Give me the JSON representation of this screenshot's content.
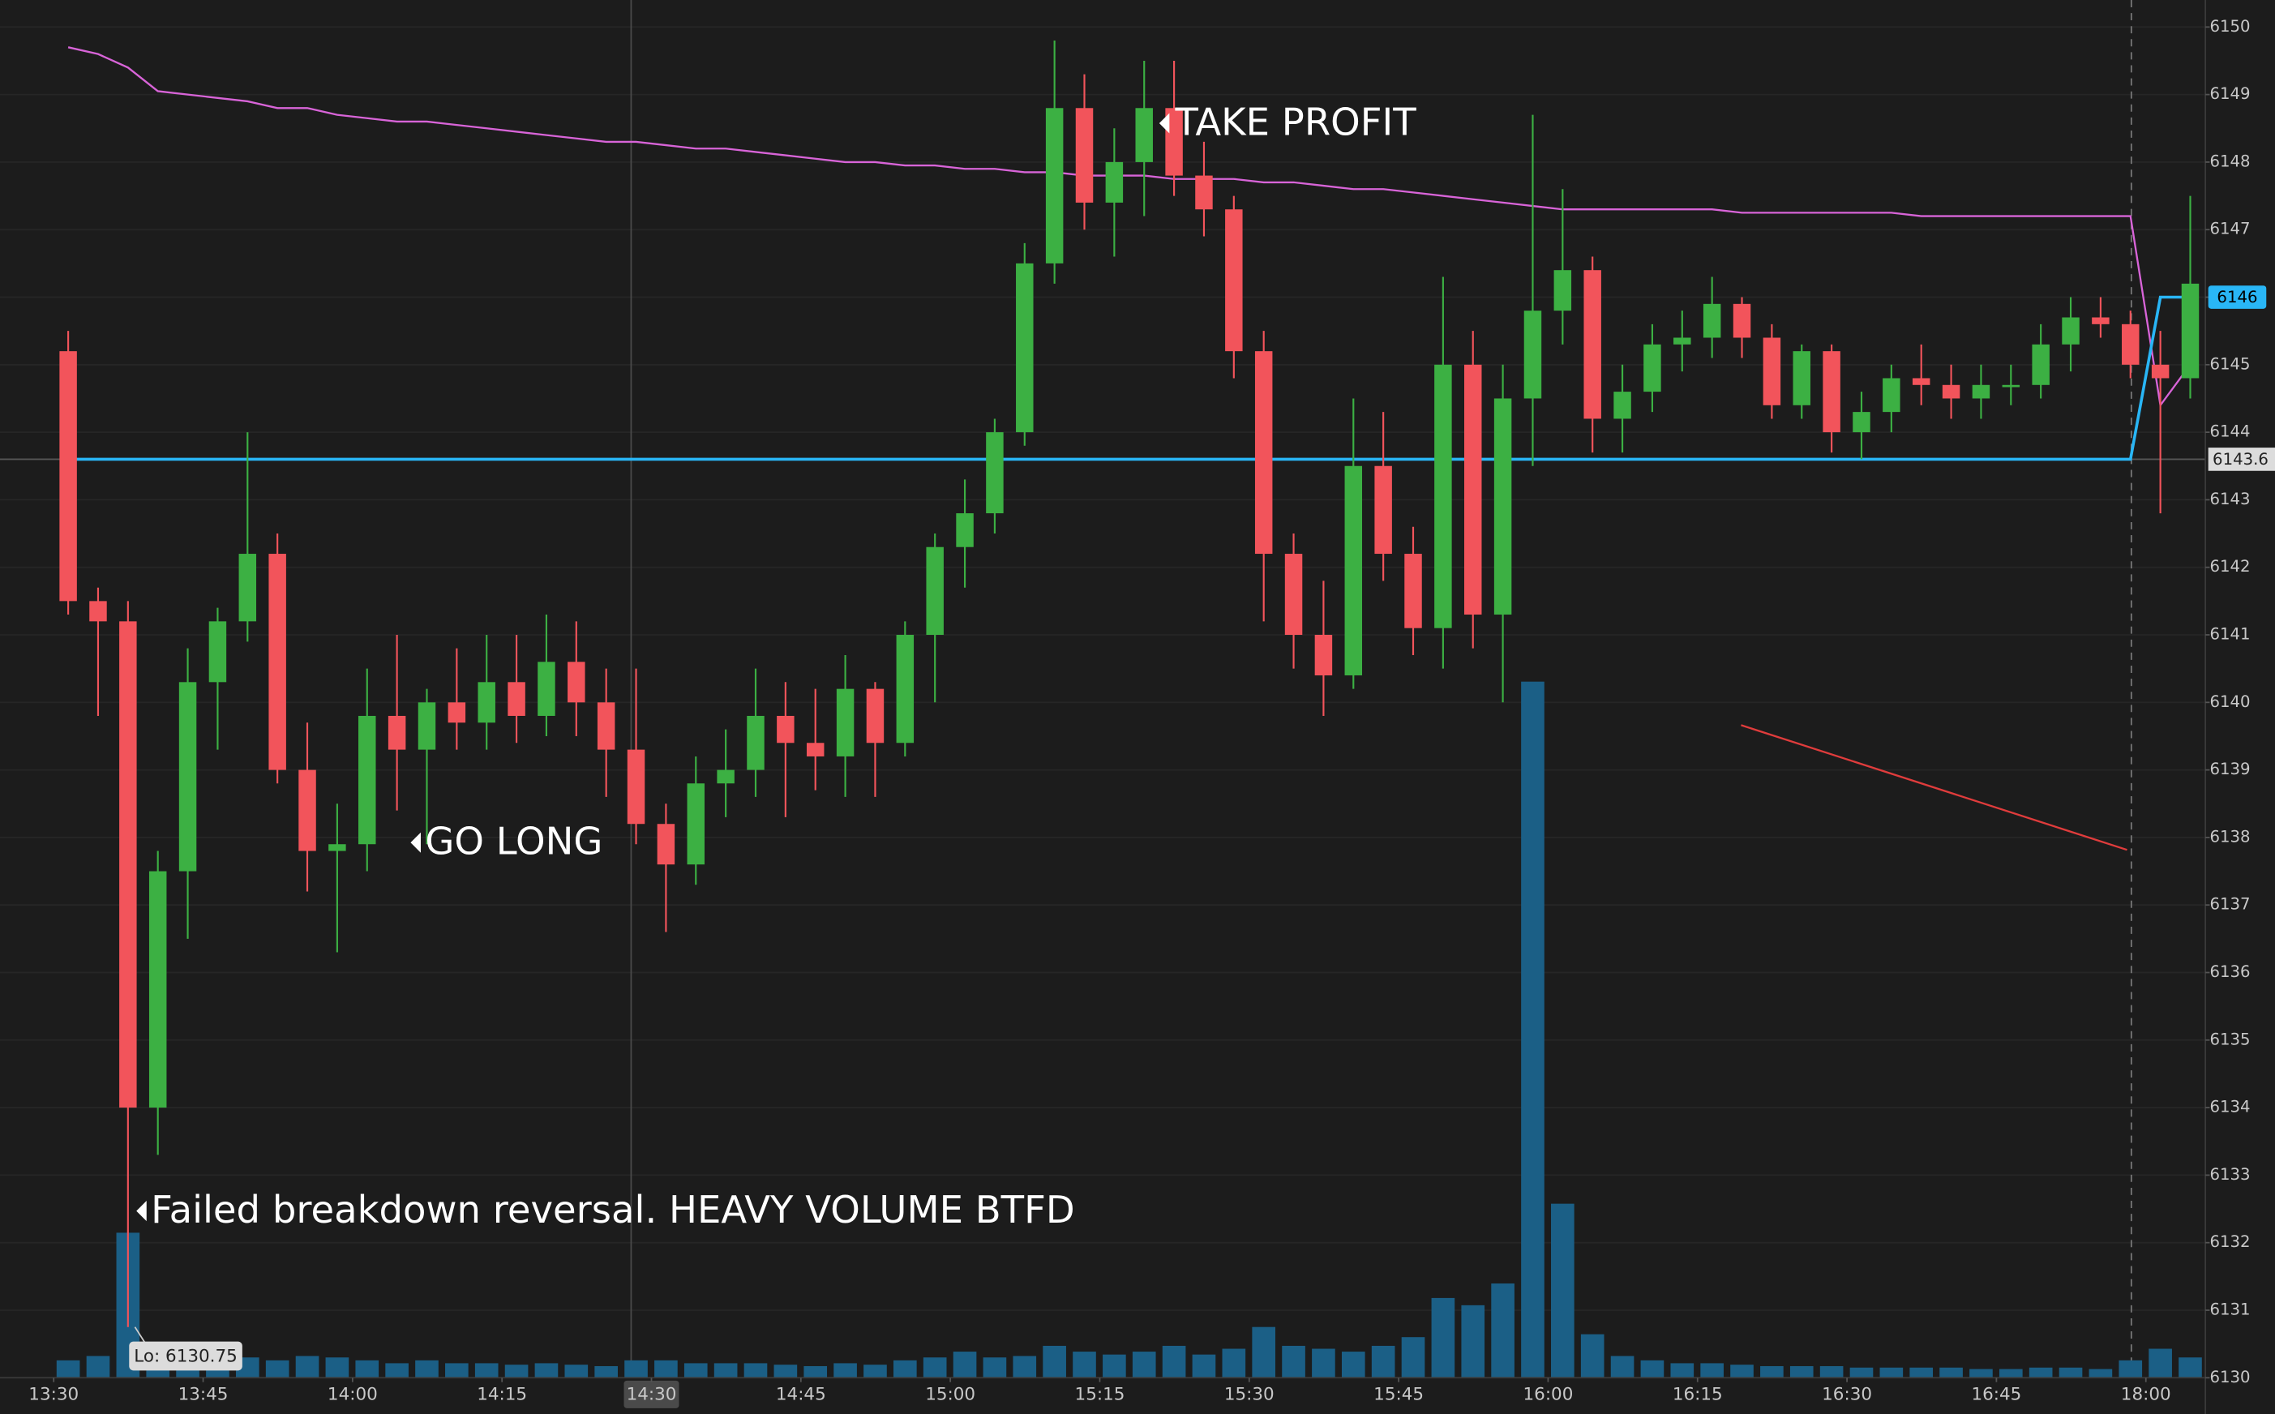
{
  "chart_data": {
    "type": "candlestick",
    "categories": [
      "13:30",
      null,
      null,
      null,
      null,
      "13:45",
      null,
      null,
      null,
      null,
      "14:00",
      null,
      null,
      null,
      null,
      "14:15",
      null,
      null,
      null,
      null,
      "14:30",
      null,
      null,
      null,
      null,
      "14:45",
      null,
      null,
      null,
      null,
      "15:00",
      null,
      null,
      null,
      null,
      "15:15",
      null,
      null,
      null,
      null,
      "15:30",
      null,
      null,
      null,
      null,
      "15:45",
      null,
      null,
      null,
      null,
      "16:00",
      null,
      null,
      null,
      null,
      "16:15",
      null,
      null,
      null,
      null,
      "16:30",
      null,
      null,
      null,
      null,
      "16:45",
      null,
      null,
      null,
      null,
      "18:00",
      null
    ],
    "open": [
      6145.2,
      6141.5,
      6141.2,
      6134,
      6137.5,
      6140.3,
      6141.2,
      6142.2,
      6139,
      6137.8,
      6137.9,
      6139.8,
      6139.3,
      6140,
      6139.7,
      6140.3,
      6139.8,
      6140.6,
      6140,
      6139.3,
      6138.2,
      6137.6,
      6138.8,
      6139,
      6139.8,
      6139.4,
      6139.2,
      6140.2,
      6139.4,
      6141,
      6142.3,
      6142.8,
      6144,
      6146.5,
      6148.8,
      6147.4,
      6148,
      6148.8,
      6147.8,
      6147.3,
      6145.2,
      6142.2,
      6141,
      6140.4,
      6143.5,
      6142.2,
      6141.1,
      6145,
      6141.3,
      6144.5,
      6145.8,
      6146.4,
      6144.2,
      6144.6,
      6145.3,
      6145.4,
      6145.9,
      6145.4,
      6144.4,
      6145.2,
      6144,
      6144.3,
      6144.8,
      6144.7,
      6144.5,
      6144.7,
      6144.7,
      6145.3,
      6145.7,
      6145.6,
      6145,
      6144.8
    ],
    "high": [
      6145.5,
      6141.7,
      6141.5,
      6137.8,
      6140.8,
      6141.4,
      6144,
      6142.5,
      6139.7,
      6138.5,
      6140.5,
      6141,
      6140.2,
      6140.8,
      6141,
      6141,
      6141.3,
      6141.2,
      6140.5,
      6140.5,
      6138.5,
      6139.2,
      6139.6,
      6140.5,
      6140.3,
      6140.2,
      6140.7,
      6140.3,
      6141.2,
      6142.5,
      6143.3,
      6144.2,
      6146.8,
      6149.8,
      6149.3,
      6148.5,
      6149.5,
      6149.5,
      6148.3,
      6147.5,
      6145.5,
      6142.5,
      6141.8,
      6144.5,
      6144.3,
      6142.6,
      6146.3,
      6145.5,
      6145,
      6148.7,
      6147.6,
      6146.6,
      6145,
      6145.6,
      6145.8,
      6146.3,
      6146,
      6145.6,
      6145.3,
      6145.3,
      6144.6,
      6145,
      6145.3,
      6145,
      6145,
      6145,
      6145.6,
      6146,
      6146,
      6145.8,
      6145.5,
      6147.5
    ],
    "low": [
      6141.3,
      6139.8,
      6130.75,
      6133.3,
      6136.5,
      6139.3,
      6140.9,
      6138.8,
      6137.2,
      6136.3,
      6137.5,
      6138.4,
      6137.9,
      6139.3,
      6139.3,
      6139.4,
      6139.5,
      6139.5,
      6138.6,
      6137.9,
      6136.6,
      6137.3,
      6138.3,
      6138.6,
      6138.3,
      6138.7,
      6138.6,
      6138.6,
      6139.2,
      6140,
      6141.7,
      6142.5,
      6143.8,
      6146.2,
      6147,
      6146.6,
      6147.2,
      6147.5,
      6146.9,
      6144.8,
      6141.2,
      6140.5,
      6139.8,
      6140.2,
      6141.8,
      6140.7,
      6140.5,
      6140.8,
      6140,
      6143.5,
      6145.3,
      6143.7,
      6143.7,
      6144.3,
      6144.9,
      6145.1,
      6145.1,
      6144.2,
      6144.2,
      6143.7,
      6143.6,
      6144,
      6144.4,
      6144.2,
      6144.2,
      6144.4,
      6144.5,
      6144.9,
      6145.4,
      6144.8,
      6142.8,
      6144.5
    ],
    "close": [
      6141.5,
      6141.2,
      6134,
      6137.5,
      6140.3,
      6141.2,
      6142.2,
      6139,
      6137.8,
      6137.9,
      6139.8,
      6139.3,
      6140,
      6139.7,
      6140.3,
      6139.8,
      6140.6,
      6140,
      6139.3,
      6138.2,
      6137.6,
      6138.8,
      6139,
      6139.8,
      6139.4,
      6139.2,
      6140.2,
      6139.4,
      6141,
      6142.3,
      6142.8,
      6144,
      6146.5,
      6148.8,
      6147.4,
      6148,
      6148.8,
      6147.8,
      6147.3,
      6145.2,
      6142.2,
      6141,
      6140.4,
      6143.5,
      6142.2,
      6141.1,
      6145,
      6141.3,
      6144.5,
      6145.8,
      6146.4,
      6144.2,
      6144.6,
      6145.3,
      6145.4,
      6145.9,
      6145.4,
      6144.4,
      6145.2,
      6144,
      6144.3,
      6144.8,
      6144.7,
      6144.5,
      6144.7,
      6144.7,
      6145.3,
      6145.7,
      6145.6,
      6145,
      6144.8,
      6146.2
    ],
    "volume": [
      12,
      15,
      100,
      22,
      15,
      12,
      14,
      12,
      15,
      14,
      12,
      10,
      12,
      10,
      10,
      9,
      10,
      9,
      8,
      12,
      12,
      10,
      10,
      10,
      9,
      8,
      10,
      9,
      12,
      14,
      18,
      14,
      15,
      22,
      18,
      16,
      18,
      22,
      16,
      20,
      35,
      22,
      20,
      18,
      22,
      28,
      55,
      50,
      65,
      480,
      120,
      30,
      15,
      12,
      10,
      10,
      9,
      8,
      8,
      8,
      7,
      7,
      7,
      7,
      6,
      6,
      7,
      7,
      6,
      12,
      20,
      14
    ],
    "vlim": [
      0,
      500
    ],
    "overlays": [
      {
        "color": "#d864d8",
        "values": [
          6149.7,
          6149.6,
          6149.4,
          6149.05,
          6149.0,
          6148.95,
          6148.9,
          6148.8,
          6148.8,
          6148.7,
          6148.65,
          6148.6,
          6148.6,
          6148.55,
          6148.5,
          6148.45,
          6148.4,
          6148.35,
          6148.3,
          6148.3,
          6148.25,
          6148.2,
          6148.2,
          6148.15,
          6148.1,
          6148.05,
          6148.0,
          6148.0,
          6147.95,
          6147.95,
          6147.9,
          6147.9,
          6147.85,
          6147.85,
          6147.8,
          6147.8,
          6147.8,
          6147.75,
          6147.75,
          6147.75,
          6147.7,
          6147.7,
          6147.65,
          6147.6,
          6147.6,
          6147.55,
          6147.5,
          6147.45,
          6147.4,
          6147.35,
          6147.3,
          6147.3,
          6147.3,
          6147.3,
          6147.3,
          6147.3,
          6147.25,
          6147.25,
          6147.25,
          6147.25,
          6147.25,
          6147.25,
          6147.2,
          6147.2,
          6147.2,
          6147.2,
          6147.2,
          6147.2,
          6147.2,
          6147.2,
          6144.4,
          6145
        ]
      },
      {
        "color": "#29b6f6",
        "values": [
          6143.6,
          6143.6,
          6143.6,
          6143.6,
          6143.6,
          6143.6,
          6143.6,
          6143.6,
          6143.6,
          6143.6,
          6143.6,
          6143.6,
          6143.6,
          6143.6,
          6143.6,
          6143.6,
          6143.6,
          6143.6,
          6143.6,
          6143.6,
          6143.6,
          6143.6,
          6143.6,
          6143.6,
          6143.6,
          6143.6,
          6143.6,
          6143.6,
          6143.6,
          6143.6,
          6143.6,
          6143.6,
          6143.6,
          6143.6,
          6143.6,
          6143.6,
          6143.6,
          6143.6,
          6143.6,
          6143.6,
          6143.6,
          6143.6,
          6143.6,
          6143.6,
          6143.6,
          6143.6,
          6143.6,
          6143.6,
          6143.6,
          6143.6,
          6143.6,
          6143.6,
          6143.6,
          6143.6,
          6143.6,
          6143.6,
          6143.6,
          6143.6,
          6143.6,
          6143.6,
          6143.6,
          6143.6,
          6143.6,
          6143.6,
          6143.6,
          6143.6,
          6143.6,
          6143.6,
          6143.6,
          6143.6,
          6146,
          6146
        ]
      }
    ],
    "up_color": "#3cb043",
    "down_color": "#f2545b",
    "volume_color": "#1b5f86",
    "ylim": [
      6130,
      6150.4
    ],
    "yticks": [
      6130,
      6131,
      6132,
      6133,
      6134,
      6135,
      6136,
      6137,
      6138,
      6139,
      6140,
      6141,
      6142,
      6143,
      6144,
      6145,
      6146,
      6147,
      6148,
      6149,
      6150
    ],
    "grid": true,
    "last_price": 6146,
    "crosshair": {
      "x": "14:30",
      "y": 6143.6
    },
    "low_label": "Lo: 6130.75",
    "annotations": [
      "TAKE PROFIT",
      "GO LONG",
      "Failed breakdown reversal.  HEAVY VOLUME BTFD"
    ]
  }
}
